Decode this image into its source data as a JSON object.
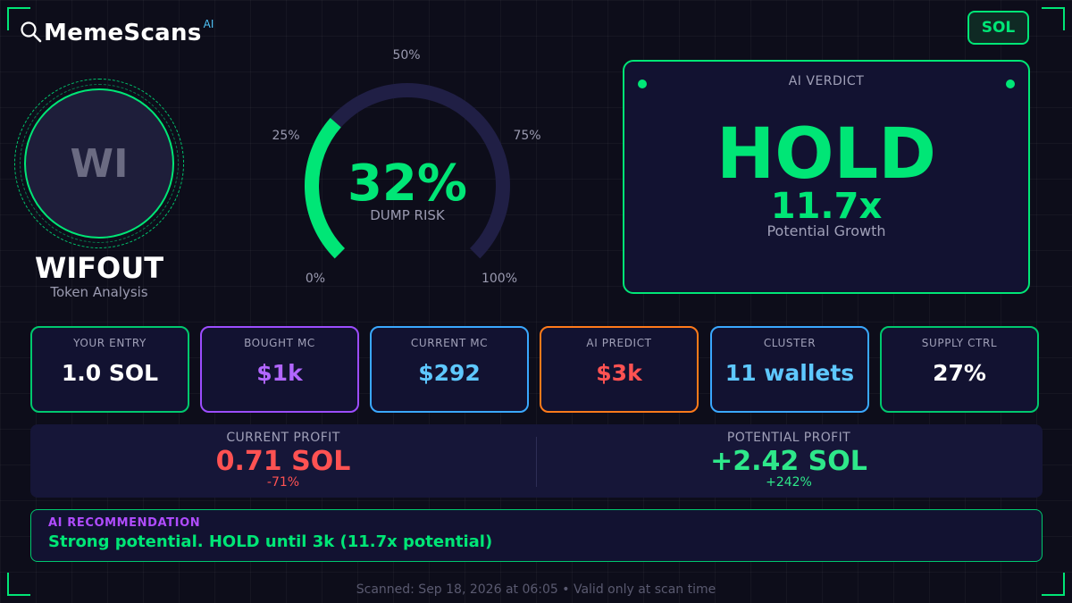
{
  "app": {
    "name": "MemeScans",
    "ai_badge": "AI",
    "chain": "SOL"
  },
  "token": {
    "avatar_initials": "WI",
    "name": "WIFOUT",
    "subtitle": "Token Analysis"
  },
  "gauge": {
    "value_percent": 32,
    "value_text": "32%",
    "label": "DUMP RISK",
    "ticks": [
      "0%",
      "25%",
      "50%",
      "75%",
      "100%"
    ],
    "accent_color": "#00e676",
    "track_color": "#201f45"
  },
  "verdict": {
    "label": "AI VERDICT",
    "word": "HOLD",
    "multiplier": "11.7x",
    "caption": "Potential Growth"
  },
  "stats": [
    {
      "label": "YOUR ENTRY",
      "value": "1.0 SOL",
      "border_color": "#00c86e",
      "value_color": "#ffffff"
    },
    {
      "label": "BOUGHT MC",
      "value": "$1k",
      "border_color": "#9c4dff",
      "value_color": "#b266ff"
    },
    {
      "label": "CURRENT MC",
      "value": "$292",
      "border_color": "#3aa8ff",
      "value_color": "#5ec8ff"
    },
    {
      "label": "AI PREDICT",
      "value": "$3k",
      "border_color": "#ff7a1a",
      "value_color": "#ff5252"
    },
    {
      "label": "CLUSTER",
      "value": "11 wallets",
      "border_color": "#3aa8ff",
      "value_color": "#5ec8ff"
    },
    {
      "label": "SUPPLY CTRL",
      "value": "27%",
      "border_color": "#00c86e",
      "value_color": "#ffffff"
    }
  ],
  "profit": {
    "current": {
      "label": "CURRENT PROFIT",
      "value": "0.71 SOL",
      "percent": "-71%",
      "color": "#ff5252"
    },
    "potential": {
      "label": "POTENTIAL PROFIT",
      "value": "+2.42 SOL",
      "percent": "+242%",
      "color": "#2ee88a"
    }
  },
  "recommendation": {
    "label": "AI RECOMMENDATION",
    "text": "Strong potential. HOLD until 3k (11.7x potential)"
  },
  "footer": {
    "text": "Scanned: Sep 18, 2026 at 06:05  •  Valid only at scan time"
  }
}
